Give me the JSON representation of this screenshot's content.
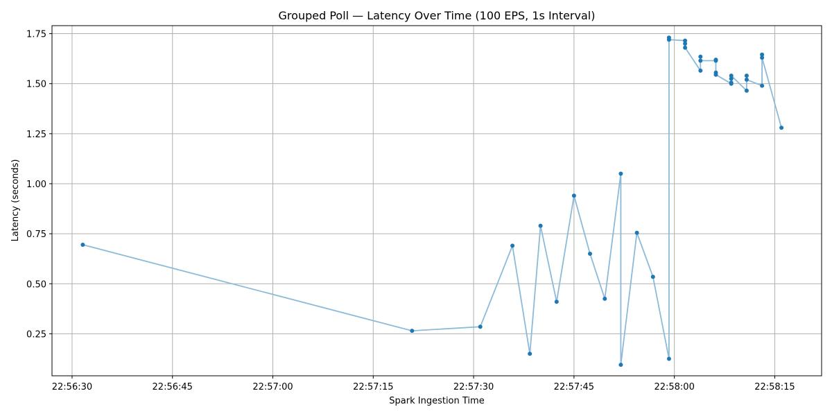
{
  "chart_data": {
    "type": "line",
    "title": "Grouped Poll — Latency Over Time (100 EPS, 1s Interval)",
    "xlabel": "Spark Ingestion Time",
    "ylabel": "Latency (seconds)",
    "x_type": "time",
    "xlim": [
      "22:56:27",
      "22:58:22"
    ],
    "ylim": [
      0.04,
      1.79
    ],
    "x_ticks": [
      "22:56:30",
      "22:56:45",
      "22:57:00",
      "22:57:15",
      "22:57:30",
      "22:57:45",
      "22:58:00",
      "22:58:15"
    ],
    "y_ticks": [
      "0.25",
      "0.50",
      "0.75",
      "1.00",
      "1.25",
      "1.50",
      "1.75"
    ],
    "grid": true,
    "colors": {
      "line": "#8cbad9",
      "marker": "#1f77b4",
      "grid": "#b0b0b0"
    },
    "series": [
      {
        "x": [
          "22:56:31.6",
          "22:57:20.8",
          "22:57:31.0",
          "22:57:35.8",
          "22:57:38.4",
          "22:57:40.0",
          "22:57:42.4",
          "22:57:45.0",
          "22:57:47.4",
          "22:57:49.6",
          "22:57:52.0",
          "22:57:52.0",
          "22:57:54.4",
          "22:57:56.8",
          "22:57:59.2",
          "22:57:59.2",
          "22:57:59.2",
          "22:58:01.6",
          "22:58:01.6",
          "22:58:01.6",
          "22:58:03.9",
          "22:58:03.9",
          "22:58:03.9",
          "22:58:06.2",
          "22:58:06.2",
          "22:58:06.2",
          "22:58:06.2",
          "22:58:08.5",
          "22:58:08.5",
          "22:58:08.5",
          "22:58:08.5",
          "22:58:10.8",
          "22:58:10.8",
          "22:58:10.8",
          "22:58:13.1",
          "22:58:13.1",
          "22:58:13.1",
          "22:58:16.0"
        ],
        "y": [
          0.695,
          0.265,
          0.285,
          0.69,
          0.15,
          0.79,
          0.41,
          0.94,
          0.65,
          0.425,
          1.05,
          0.095,
          0.755,
          0.535,
          0.125,
          1.73,
          1.72,
          1.715,
          1.7,
          1.68,
          1.565,
          1.635,
          1.615,
          1.615,
          1.62,
          1.555,
          1.545,
          1.5,
          1.505,
          1.525,
          1.54,
          1.465,
          1.54,
          1.52,
          1.49,
          1.645,
          1.63,
          1.28
        ]
      }
    ]
  }
}
